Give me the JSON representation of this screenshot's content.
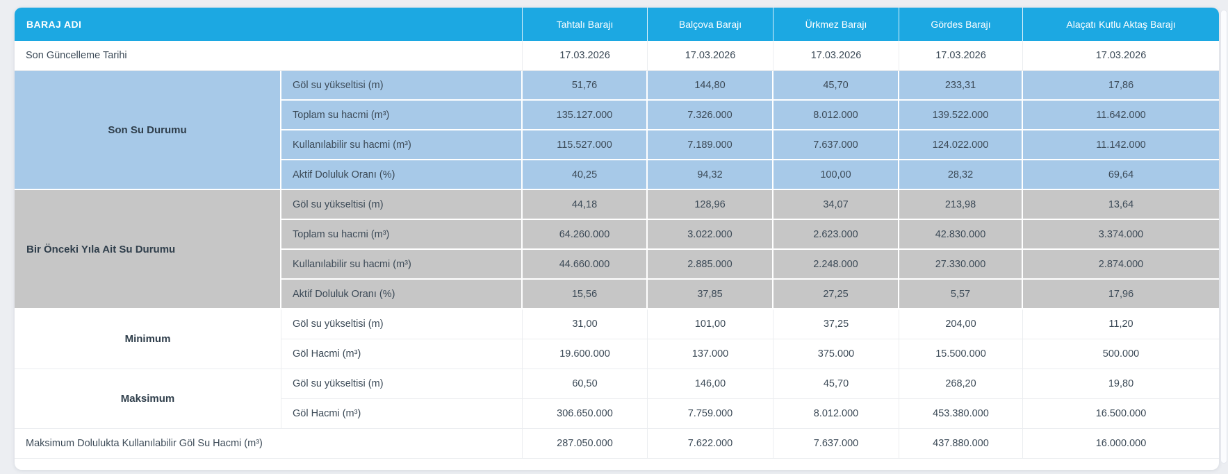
{
  "table": {
    "header": {
      "corner_label": "BARAJ ADI",
      "columns": [
        "Tahtalı Barajı",
        "Balçova Barajı",
        "Ürkmez Barajı",
        "Gördes Barajı",
        "Alaçatı Kutlu Aktaş Barajı"
      ]
    },
    "update_row": {
      "label": "Son Güncelleme Tarihi",
      "values": [
        "17.03.2026",
        "17.03.2026",
        "17.03.2026",
        "17.03.2026",
        "17.03.2026"
      ]
    },
    "sections": [
      {
        "label": "Son Su Durumu",
        "style": "blue",
        "rows": [
          {
            "label": "Göl su yükseltisi (m)",
            "values": [
              "51,76",
              "144,80",
              "45,70",
              "233,31",
              "17,86"
            ]
          },
          {
            "label": "Toplam su hacmi (m³)",
            "values": [
              "135.127.000",
              "7.326.000",
              "8.012.000",
              "139.522.000",
              "11.642.000"
            ]
          },
          {
            "label": "Kullanılabilir su hacmi (m³)",
            "values": [
              "115.527.000",
              "7.189.000",
              "7.637.000",
              "124.022.000",
              "11.142.000"
            ]
          },
          {
            "label": "Aktif Doluluk Oranı (%)",
            "values": [
              "40,25",
              "94,32",
              "100,00",
              "28,32",
              "69,64"
            ]
          }
        ]
      },
      {
        "label": "Bir Önceki Yıla Ait Su Durumu",
        "style": "gray",
        "rows": [
          {
            "label": "Göl su yükseltisi (m)",
            "values": [
              "44,18",
              "128,96",
              "34,07",
              "213,98",
              "13,64"
            ]
          },
          {
            "label": "Toplam su hacmi (m³)",
            "values": [
              "64.260.000",
              "3.022.000",
              "2.623.000",
              "42.830.000",
              "3.374.000"
            ]
          },
          {
            "label": "Kullanılabilir su hacmi (m³)",
            "values": [
              "44.660.000",
              "2.885.000",
              "2.248.000",
              "27.330.000",
              "2.874.000"
            ]
          },
          {
            "label": "Aktif Doluluk Oranı (%)",
            "values": [
              "15,56",
              "37,85",
              "27,25",
              "5,57",
              "17,96"
            ]
          }
        ]
      },
      {
        "label": "Minimum",
        "style": "white",
        "rows": [
          {
            "label": "Göl su yükseltisi (m)",
            "values": [
              "31,00",
              "101,00",
              "37,25",
              "204,00",
              "11,20"
            ]
          },
          {
            "label": "Göl Hacmi (m³)",
            "values": [
              "19.600.000",
              "137.000",
              "375.000",
              "15.500.000",
              "500.000"
            ]
          }
        ]
      },
      {
        "label": "Maksimum",
        "style": "white",
        "rows": [
          {
            "label": "Göl su yükseltisi (m)",
            "values": [
              "60,50",
              "146,00",
              "45,70",
              "268,20",
              "19,80"
            ]
          },
          {
            "label": "Göl Hacmi (m³)",
            "values": [
              "306.650.000",
              "7.759.000",
              "8.012.000",
              "453.380.000",
              "16.500.000"
            ]
          }
        ]
      }
    ],
    "footer_row": {
      "label": "Maksimum Dolulukta Kullanılabilir Göl Su Hacmi (m³)",
      "values": [
        "287.050.000",
        "7.622.000",
        "7.637.000",
        "437.880.000",
        "16.000.000"
      ]
    }
  },
  "colors": {
    "header_blue": "#1CA8E2",
    "section_blue": "#A7C9E8",
    "section_gray": "#C6C6C6",
    "page_background": "#ECEEF2",
    "text_dark": "#3C4A57"
  }
}
